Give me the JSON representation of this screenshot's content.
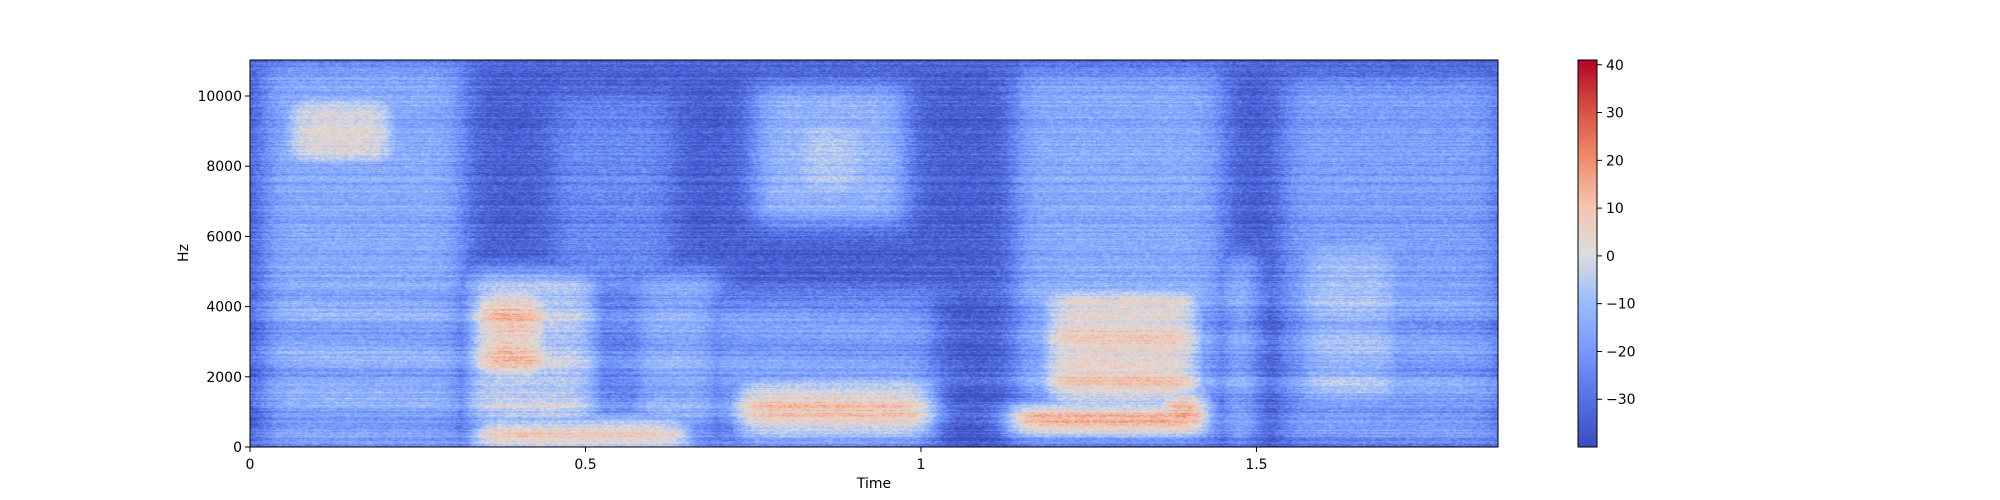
{
  "chart_data": {
    "type": "heatmap",
    "subtype": "spectrogram",
    "title": "",
    "xlabel": "Time",
    "ylabel": "Hz",
    "xlim": [
      0,
      1.86
    ],
    "ylim": [
      0,
      11025
    ],
    "x_ticks": [
      0,
      0.5,
      1,
      1.5
    ],
    "x_tick_labels": [
      "0",
      "0.5",
      "1",
      "1.5"
    ],
    "y_ticks": [
      0,
      2000,
      4000,
      6000,
      8000,
      10000
    ],
    "y_tick_labels": [
      "0",
      "2000",
      "4000",
      "6000",
      "8000",
      "10000"
    ],
    "colormap": "coolwarm",
    "colorbar": {
      "range": [
        -40,
        41
      ],
      "ticks": [
        40,
        30,
        20,
        10,
        0,
        -10,
        -20,
        -30
      ],
      "tick_labels": [
        "40",
        "30",
        "20",
        "10",
        "0",
        "−10",
        "−20",
        "−30"
      ]
    },
    "background_level": -35,
    "energy_regions": [
      {
        "t": [
          0.02,
          0.32
        ],
        "f": [
          0,
          10900
        ],
        "level": -15
      },
      {
        "t": [
          0.05,
          0.22
        ],
        "f": [
          8000,
          10000
        ],
        "level": 3
      },
      {
        "t": [
          0.07,
          0.13
        ],
        "f": [
          9000,
          9600
        ],
        "level": 15
      },
      {
        "t": [
          0.32,
          0.52
        ],
        "f": [
          0,
          5000
        ],
        "level": -5
      },
      {
        "t": [
          0.33,
          0.45
        ],
        "f": [
          1800,
          4600
        ],
        "level": 10
      },
      {
        "t": [
          0.33,
          0.66
        ],
        "f": [
          0,
          800
        ],
        "level": 18
      },
      {
        "t": [
          0.45,
          0.63
        ],
        "f": [
          0,
          10000
        ],
        "level": -24
      },
      {
        "t": [
          0.57,
          0.7
        ],
        "f": [
          0,
          5000
        ],
        "level": -14
      },
      {
        "t": [
          0.75,
          0.98
        ],
        "f": [
          6300,
          10300
        ],
        "level": -12
      },
      {
        "t": [
          0.8,
          0.93
        ],
        "f": [
          7000,
          9500
        ],
        "level": -6
      },
      {
        "t": [
          0.68,
          1.02
        ],
        "f": [
          0,
          4300
        ],
        "level": -18
      },
      {
        "t": [
          0.72,
          1.02
        ],
        "f": [
          200,
          1900
        ],
        "level": 8
      },
      {
        "t": [
          1.14,
          1.45
        ],
        "f": [
          0,
          10700
        ],
        "level": -15
      },
      {
        "t": [
          1.18,
          1.42
        ],
        "f": [
          1000,
          4500
        ],
        "level": 5
      },
      {
        "t": [
          1.13,
          1.43
        ],
        "f": [
          300,
          1200
        ],
        "level": 20
      },
      {
        "t": [
          1.35,
          1.43
        ],
        "f": [
          400,
          1600
        ],
        "level": 22
      },
      {
        "t": [
          1.45,
          1.5
        ],
        "f": [
          0,
          5500
        ],
        "level": -12
      },
      {
        "t": [
          1.54,
          1.86
        ],
        "f": [
          0,
          10500
        ],
        "level": -18
      },
      {
        "t": [
          1.56,
          1.72
        ],
        "f": [
          1000,
          6000
        ],
        "level": -10
      }
    ]
  }
}
